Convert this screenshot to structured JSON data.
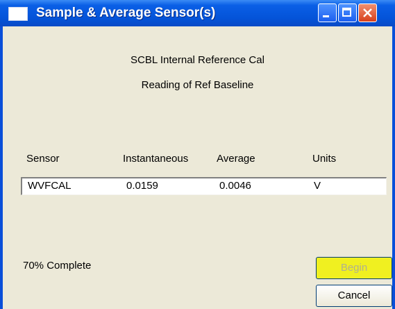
{
  "window": {
    "title": "Sample & Average Sensor(s)"
  },
  "header": {
    "line1": "SCBL Internal Reference Cal",
    "line2": "Reading of Ref Baseline"
  },
  "table": {
    "columns": [
      "Sensor",
      "Instantaneous",
      "Average",
      "Units"
    ],
    "rows": [
      [
        "WVFCAL",
        "0.0159",
        "0.0046",
        "V"
      ]
    ]
  },
  "status": "70% Complete",
  "buttons": {
    "begin": "Begin",
    "cancel": "Cancel"
  }
}
